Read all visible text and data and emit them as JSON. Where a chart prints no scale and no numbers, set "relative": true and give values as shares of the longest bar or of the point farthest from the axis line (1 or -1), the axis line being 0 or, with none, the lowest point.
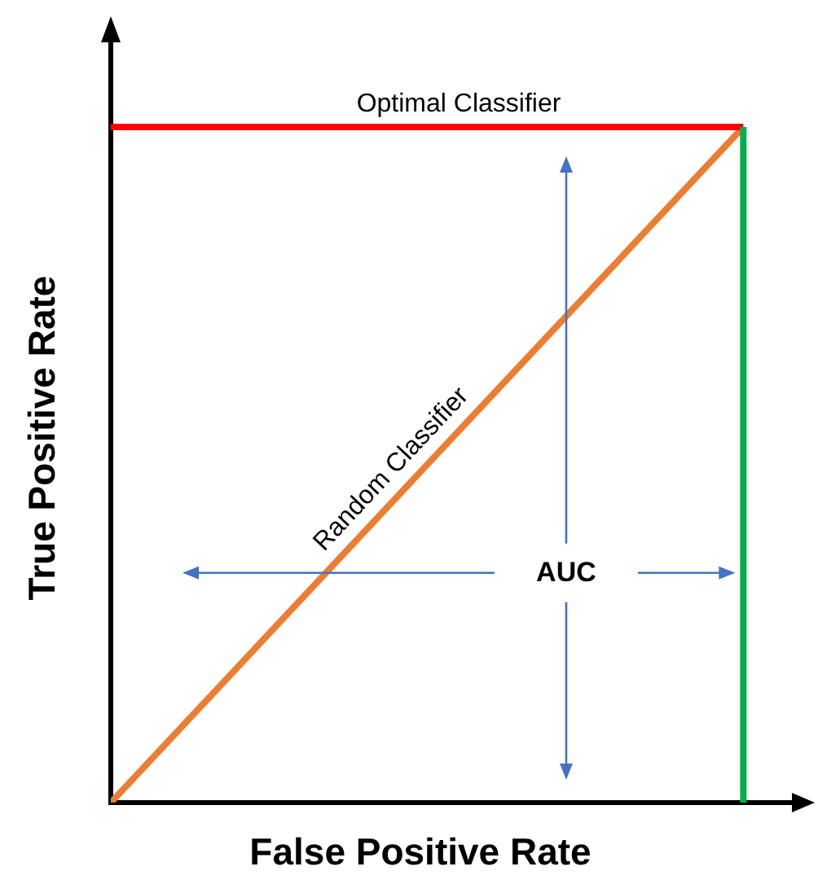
{
  "chart_data": {
    "type": "line",
    "relative": true,
    "xlabel": "False Positive Rate",
    "ylabel": "True Positive Rate",
    "categories": [
      null,
      null
    ],
    "series": [
      {
        "name": "Optimal Classifier",
        "color": "#ff0000",
        "values": [
          1,
          1
        ]
      },
      {
        "name": "Random Classifier",
        "color": "#ed7d31",
        "values": [
          0,
          1
        ]
      }
    ],
    "annotations": [
      "AUC"
    ],
    "legend": false,
    "marker": "none",
    "line_style": "solid"
  }
}
